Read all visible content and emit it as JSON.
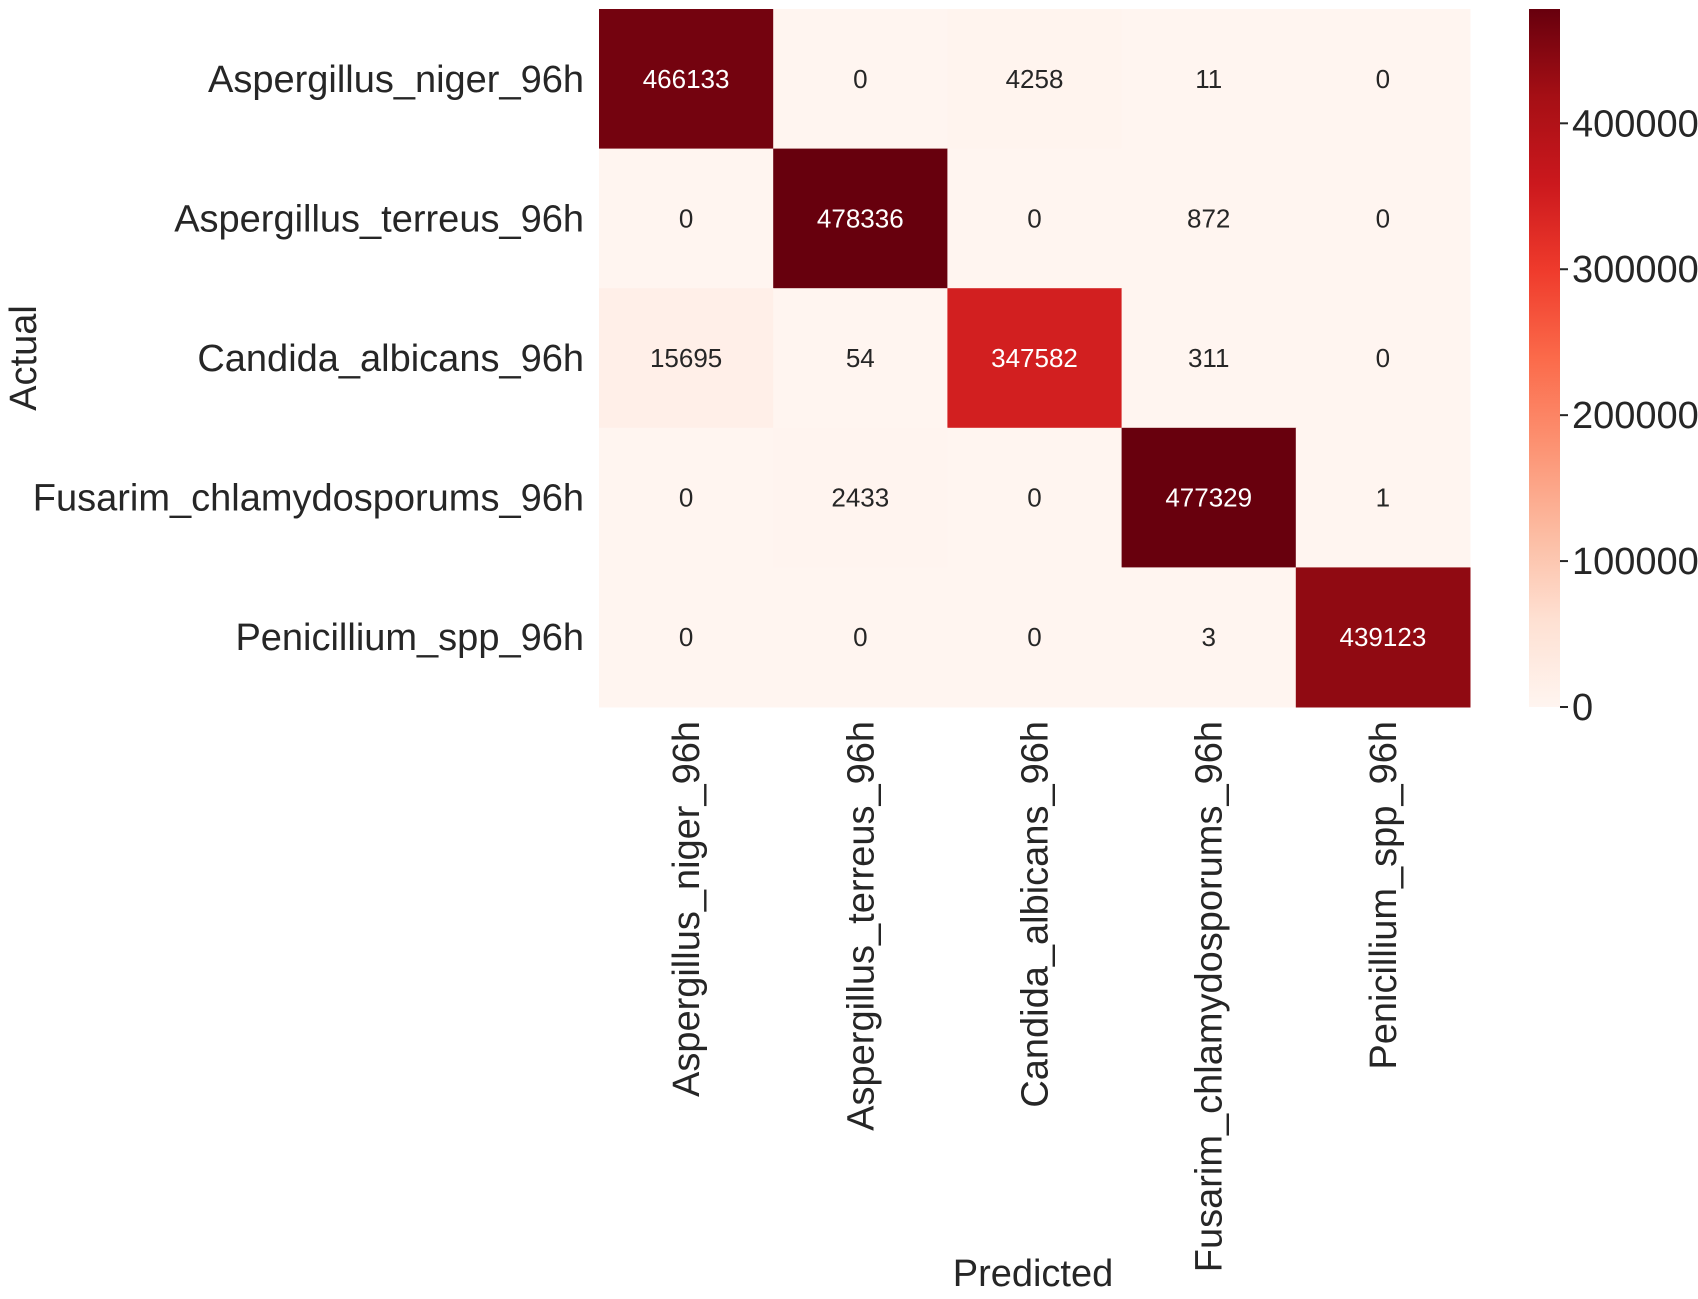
{
  "chart_data": {
    "type": "heatmap",
    "title": "",
    "xlabel": "Predicted",
    "ylabel": "Actual",
    "x_categories": [
      "Aspergillus_niger_96h",
      "Aspergillus_terreus_96h",
      "Candida_albicans_96h",
      "Fusarim_chlamydosporums_96h",
      "Penicillium_spp_96h"
    ],
    "y_categories": [
      "Aspergillus_niger_96h",
      "Aspergillus_terreus_96h",
      "Candida_albicans_96h",
      "Fusarim_chlamydosporums_96h",
      "Penicillium_spp_96h"
    ],
    "values": [
      [
        466133,
        0,
        4258,
        11,
        0
      ],
      [
        0,
        478336,
        0,
        872,
        0
      ],
      [
        15695,
        54,
        347582,
        311,
        0
      ],
      [
        0,
        2433,
        0,
        477329,
        1
      ],
      [
        0,
        0,
        0,
        3,
        439123
      ]
    ],
    "colormap": "Reds",
    "color_range": [
      0,
      478336
    ],
    "colorbar": {
      "ticks": [
        0,
        100000,
        200000,
        300000,
        400000
      ],
      "tick_labels": [
        "0",
        "100000",
        "200000",
        "300000",
        "400000"
      ]
    },
    "x_tick_rotation": "vertical",
    "grid": false,
    "legend": "colorbar-right"
  }
}
